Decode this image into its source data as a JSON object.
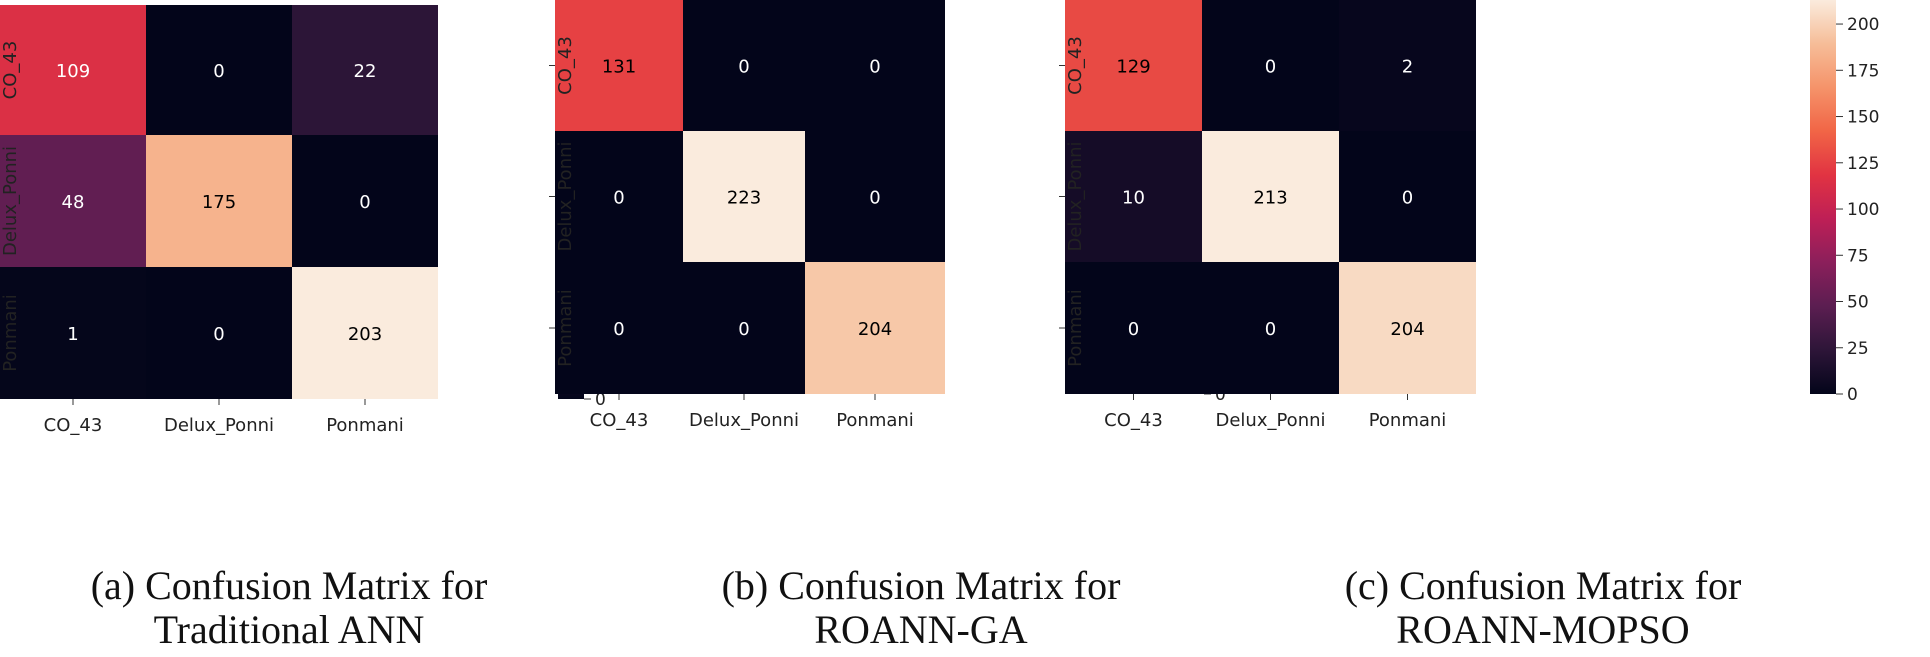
{
  "colors": {
    "background": "#ffffff",
    "cell_border": "none",
    "cmap_stops": [
      "#03051a",
      "#2d1538",
      "#5b1e51",
      "#8b1f5b",
      "#be1f56",
      "#e13342",
      "#f16546",
      "#f5936a",
      "#f6bd98",
      "#faebdd"
    ],
    "text_light": "#ffffff",
    "text_dark": "#000000"
  },
  "panels": [
    {
      "caption_line1": "(a) Confusion Matrix for",
      "caption_line2": "Traditional ANN"
    },
    {
      "caption_line1": "(b) Confusion Matrix for",
      "caption_line2": "ROANN-GA"
    },
    {
      "caption_line1": "(c) Confusion Matrix for",
      "caption_line2": "ROANN-MOPSO"
    }
  ],
  "chart_data": [
    {
      "type": "heatmap",
      "title": "",
      "xlabel": "",
      "ylabel": "",
      "x_categories": [
        "CO_43",
        "Delux_Ponni",
        "Ponmani"
      ],
      "y_categories": [
        "CO_43",
        "Delux_Ponni",
        "Ponmani"
      ],
      "values": [
        [
          109,
          0,
          22
        ],
        [
          48,
          175,
          0
        ],
        [
          1,
          0,
          203
        ]
      ],
      "color_range": [
        0,
        203
      ],
      "colorbar_ticks": [
        0,
        25,
        50,
        75,
        100,
        125,
        150,
        175,
        200
      ],
      "grid": false,
      "legend": "colorbar-right"
    },
    {
      "type": "heatmap",
      "title": "",
      "xlabel": "",
      "ylabel": "",
      "x_categories": [
        "CO_43",
        "Delux_Ponni",
        "Ponmani"
      ],
      "y_categories": [
        "CO_43",
        "Delux_Ponni",
        "Ponmani"
      ],
      "values": [
        [
          131,
          0,
          0
        ],
        [
          0,
          223,
          0
        ],
        [
          0,
          0,
          204
        ]
      ],
      "color_range": [
        0,
        223
      ],
      "colorbar_ticks": [
        0,
        25,
        50,
        75,
        100,
        125,
        150,
        175,
        200
      ],
      "grid": false,
      "legend": "colorbar-right"
    },
    {
      "type": "heatmap",
      "title": "",
      "xlabel": "",
      "ylabel": "",
      "x_categories": [
        "CO_43",
        "Delux_Ponni",
        "Ponmani"
      ],
      "y_categories": [
        "CO_43",
        "Delux_Ponni",
        "Ponmani"
      ],
      "values": [
        [
          129,
          0,
          2
        ],
        [
          10,
          213,
          0
        ],
        [
          0,
          0,
          204
        ]
      ],
      "color_range": [
        0,
        213
      ],
      "colorbar_ticks": [
        0,
        25,
        50,
        75,
        100,
        125,
        150,
        175,
        200
      ],
      "grid": false,
      "legend": "colorbar-right"
    }
  ]
}
